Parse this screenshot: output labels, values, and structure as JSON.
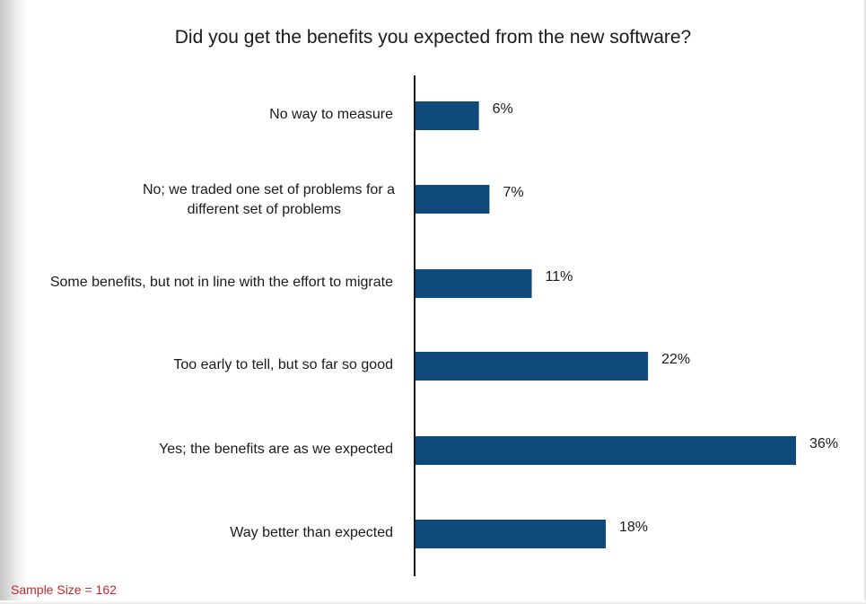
{
  "chart_data": {
    "type": "bar",
    "orientation": "horizontal",
    "title": "Did you get the benefits you expected from the new software?",
    "categories": [
      "No way to measure",
      "No; we traded one set of problems for a different set of problems",
      "Some benefits, but not in line with the effort to migrate",
      "Too early to tell, but so far so good",
      "Yes; the benefits are as we expected",
      "Way better than expected"
    ],
    "category_lines": [
      [
        "No way to measure"
      ],
      [
        "No; we traded one set of problems for a",
        "different set of problems"
      ],
      [
        "Some benefits, but not in line with the effort to migrate"
      ],
      [
        "Too early to tell, but so far so good"
      ],
      [
        "Yes; the benefits are as we expected"
      ],
      [
        "Way better than expected"
      ]
    ],
    "values": [
      6,
      7,
      11,
      22,
      36,
      18
    ],
    "value_labels": [
      "6%",
      "7%",
      "11%",
      "22%",
      "36%",
      "18%"
    ],
    "xlim": [
      0,
      36
    ],
    "grid": false,
    "legend": "none",
    "bar_color": "#0f4a7d"
  },
  "footnote": "Sample Size = 162"
}
